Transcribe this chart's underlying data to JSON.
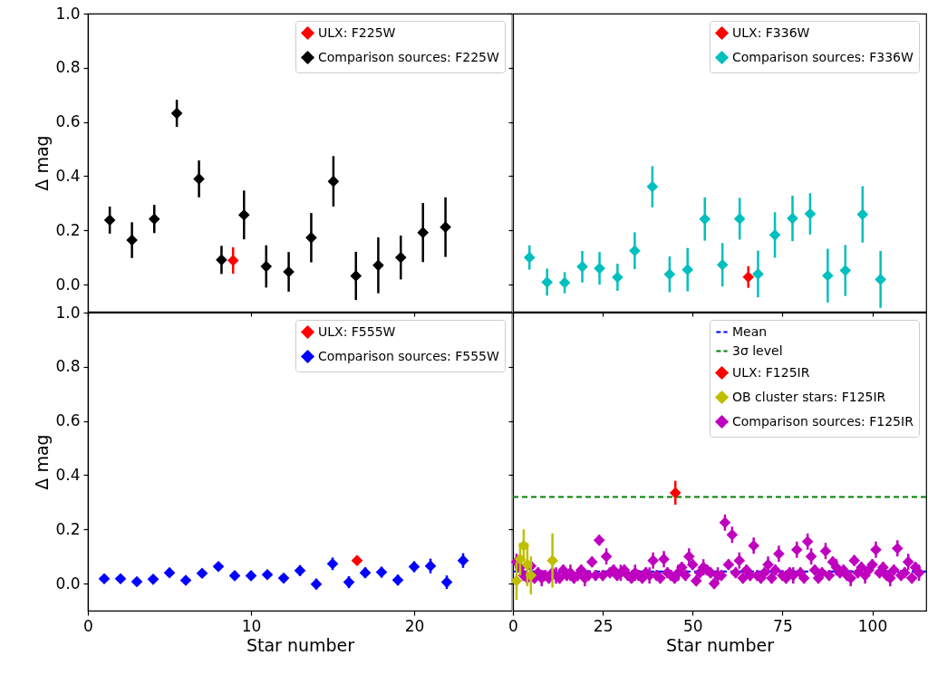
{
  "chart_data": [
    {
      "type": "scatter",
      "ylabel": "Δ mag",
      "marker": "diamond",
      "legend": "top right",
      "tick_labels": "y",
      "xlim": [
        0,
        26
      ],
      "xticks": [
        0,
        10,
        20
      ],
      "ylim": [
        -0.1,
        1.0
      ],
      "yticks": [
        {
          "value": 0,
          "label": "0.0"
        },
        {
          "value": 0.2,
          "label": "0.2"
        },
        {
          "value": 0.4,
          "label": "0.4"
        },
        {
          "value": 0.6,
          "label": "0.6"
        },
        {
          "value": 0.8,
          "label": "0.8"
        },
        {
          "value": 1,
          "label": "1.0"
        }
      ],
      "series": [
        {
          "name": "ULX: F225W",
          "color": "#ff0000",
          "x": [
            8.9
          ],
          "values": [
            0.089
          ],
          "errors": [
            0.049
          ]
        },
        {
          "name": "Comparison sources: F225W",
          "color": "#000000",
          "x": [
            1.34,
            2.7,
            4.07,
            5.45,
            6.81,
            8.19,
            9.57,
            10.93,
            12.31,
            13.69,
            15.05,
            16.43,
            17.8,
            19.18,
            20.54,
            21.92
          ],
          "values": [
            0.238,
            0.164,
            0.242,
            0.632,
            0.39,
            0.091,
            0.257,
            0.067,
            0.047,
            0.173,
            0.381,
            0.032,
            0.071,
            0.1,
            0.192,
            0.212
          ],
          "errors": [
            0.05,
            0.066,
            0.052,
            0.05,
            0.068,
            0.052,
            0.09,
            0.078,
            0.073,
            0.091,
            0.093,
            0.089,
            0.103,
            0.081,
            0.109,
            0.11
          ]
        }
      ]
    },
    {
      "type": "scatter",
      "marker": "diamond",
      "legend": "top right",
      "tick_labels": false,
      "xlim": [
        0,
        115
      ],
      "xticks": [
        0,
        25,
        50,
        75,
        100
      ],
      "ylim": [
        -0.1,
        1.0
      ],
      "yticks": [
        0,
        0.2,
        0.4,
        0.6,
        0.8,
        1
      ],
      "series": [
        {
          "name": "ULX: F336W",
          "color": "#ff0000",
          "x": [
            65.5
          ],
          "values": [
            0.028
          ],
          "errors": [
            0.04
          ]
        },
        {
          "name": "Comparison sources: F336W",
          "color": "#00bfbf",
          "x": [
            4.6,
            9.5,
            14.4,
            19.3,
            24.1,
            29.1,
            33.9,
            38.8,
            43.6,
            48.6,
            53.4,
            58.3,
            63.1,
            68.2,
            72.9,
            77.8,
            82.7,
            87.6,
            92.5,
            97.3,
            102.3
          ],
          "values": [
            0.1,
            0.009,
            0.007,
            0.066,
            0.06,
            0.027,
            0.125,
            0.361,
            0.038,
            0.055,
            0.242,
            0.073,
            0.243,
            0.039,
            0.183,
            0.244,
            0.261,
            0.033,
            0.052,
            0.259,
            0.019
          ],
          "errors": [
            0.045,
            0.05,
            0.039,
            0.058,
            0.06,
            0.05,
            0.068,
            0.076,
            0.066,
            0.08,
            0.08,
            0.08,
            0.077,
            0.086,
            0.084,
            0.084,
            0.076,
            0.099,
            0.094,
            0.104,
            0.105
          ]
        }
      ]
    },
    {
      "type": "scatter",
      "xlabel": "Star number",
      "ylabel": "Δ mag",
      "marker": "diamond",
      "legend": "top right",
      "xlim": [
        0,
        26
      ],
      "xticks": [
        0,
        10,
        20
      ],
      "ylim": [
        -0.1,
        1.0
      ],
      "yticks": [
        {
          "value": 0,
          "label": "0.0"
        },
        {
          "value": 0.2,
          "label": "0.2"
        },
        {
          "value": 0.4,
          "label": "0.4"
        },
        {
          "value": 0.6,
          "label": "0.6"
        },
        {
          "value": 0.8,
          "label": "0.8"
        },
        {
          "value": 1,
          "label": "1.0"
        }
      ],
      "series": [
        {
          "name": "ULX: F555W",
          "color": "#ff0000",
          "x": [
            16.5
          ],
          "values": [
            0.085
          ],
          "errors": [
            null
          ]
        },
        {
          "name": "Comparison sources: F555W",
          "color": "#0000ff",
          "x": [
            1,
            2,
            3,
            4,
            5,
            6,
            7,
            8,
            9,
            10,
            11,
            12,
            13,
            14,
            15,
            16,
            17,
            18,
            19,
            20,
            21,
            22,
            23
          ],
          "values": [
            0.018,
            0.018,
            0.007,
            0.016,
            0.04,
            0.012,
            0.038,
            0.063,
            0.029,
            0.029,
            0.033,
            0.02,
            0.048,
            -0.002,
            0.073,
            0.005,
            0.04,
            0.042,
            0.013,
            0.062,
            0.065,
            0.005,
            0.085
          ],
          "errors": [
            null,
            null,
            null,
            null,
            null,
            null,
            null,
            null,
            null,
            null,
            null,
            null,
            0.02,
            0.02,
            0.023,
            0.022,
            0.02,
            0.02,
            0.02,
            0.02,
            0.027,
            0.025,
            0.027
          ]
        }
      ]
    },
    {
      "type": "scatter",
      "xlabel": "Star number",
      "marker": "diamond",
      "legend": "top right",
      "tick_labels": "x",
      "xlim": [
        0,
        115
      ],
      "xticks": [
        0,
        25,
        50,
        75,
        100
      ],
      "ylim": [
        -0.1,
        1.0
      ],
      "yticks": [
        0,
        0.2,
        0.4,
        0.6,
        0.8,
        1
      ],
      "ref_lines": [
        {
          "axis": "y",
          "value": 0.045,
          "label": "Mean",
          "color": "#0000ff",
          "line_style": "dashed"
        },
        {
          "axis": "y",
          "value": 0.32,
          "label": "3σ level",
          "color": "#008000",
          "line_style": "dashed"
        }
      ],
      "series": [
        {
          "name": "ULX: F125IR",
          "color": "#ff0000",
          "x": [
            45.2
          ],
          "values": [
            0.335
          ],
          "errors": [
            0.044
          ]
        },
        {
          "name": "OB cluster stars: F125IR",
          "color": "#bfbf00",
          "x": [
            1,
            2,
            3,
            4,
            5,
            11
          ],
          "values": [
            0.01,
            0.09,
            0.14,
            0.07,
            0.03,
            0.085
          ],
          "errors": [
            0.07,
            0.06,
            0.06,
            0.08,
            0.07,
            0.1
          ]
        },
        {
          "name": "Comparison sources: F125IR",
          "color": "#bf00bf",
          "x": [
            1,
            2,
            3,
            4,
            5,
            6,
            7,
            8,
            9,
            10,
            11,
            12,
            13,
            14,
            15,
            16,
            17,
            18,
            19,
            20,
            21,
            22,
            23,
            24,
            25,
            26,
            27,
            28,
            29,
            30,
            31,
            32,
            33,
            34,
            35,
            36,
            37,
            38,
            39,
            40,
            41,
            42,
            43,
            44,
            45,
            46,
            47,
            48,
            49,
            50,
            51,
            52,
            53,
            54,
            55,
            56,
            57,
            58,
            59,
            60,
            61,
            62,
            63,
            64,
            65,
            66,
            67,
            68,
            69,
            70,
            71,
            72,
            73,
            74,
            75,
            76,
            77,
            78,
            79,
            80,
            81,
            82,
            83,
            84,
            85,
            86,
            87,
            88,
            89,
            90,
            91,
            92,
            93,
            94,
            95,
            96,
            97,
            98,
            99,
            100,
            101,
            102,
            103,
            104,
            105,
            106,
            107,
            108,
            109,
            110,
            111,
            112,
            113
          ],
          "values": [
            0.08,
            0.06,
            0.03,
            0.02,
            0.065,
            0.02,
            0.04,
            0.02,
            0.03,
            0.02,
            0.04,
            0.03,
            0.02,
            0.05,
            0.03,
            0.04,
            0.02,
            0.03,
            0.05,
            0.02,
            0.03,
            0.08,
            0.03,
            0.16,
            0.03,
            0.1,
            0.04,
            0.05,
            0.03,
            0.04,
            0.05,
            0.03,
            0.02,
            0.04,
            0.03,
            0.02,
            0.04,
            0.03,
            0.085,
            0.03,
            0.02,
            0.09,
            0.04,
            0.03,
            0.02,
            0.04,
            0.06,
            0.03,
            0.1,
            0.07,
            0.01,
            0.04,
            0.06,
            0.05,
            0.04,
            0.0,
            0.03,
            0.03,
            0.225,
            0.07,
            0.18,
            0.04,
            0.085,
            0.02,
            0.05,
            0.03,
            0.14,
            0.03,
            0.02,
            0.04,
            0.07,
            0.02,
            0.05,
            0.11,
            0.03,
            0.02,
            0.04,
            0.03,
            0.125,
            0.04,
            0.02,
            0.155,
            0.1,
            0.05,
            0.02,
            0.04,
            0.12,
            0.03,
            0.08,
            0.06,
            0.04,
            0.05,
            0.03,
            0.02,
            0.085,
            0.04,
            0.06,
            0.03,
            0.05,
            0.07,
            0.125,
            0.04,
            0.06,
            0.03,
            0.02,
            0.05,
            0.13,
            0.03,
            0.04,
            0.08,
            0.02,
            0.06,
            0.04
          ],
          "errors": [
            0.03,
            0.02,
            0.02,
            0.02,
            null,
            0.02,
            0.02,
            0.03,
            0.02,
            0.02,
            0.02,
            0.03,
            0.02,
            0.02,
            0.02,
            0.03,
            0.02,
            0.02,
            0.02,
            0.03,
            0.02,
            0.02,
            0.02,
            0.02,
            0.02,
            0.03,
            0.02,
            0.02,
            0.02,
            0.03,
            0.02,
            0.02,
            0.02,
            0.03,
            0.02,
            0.02,
            0.02,
            0.03,
            0.03,
            0.02,
            0.02,
            0.03,
            0.02,
            0.02,
            0.02,
            0.03,
            0.02,
            0.02,
            0.03,
            0.02,
            0.02,
            0.02,
            0.03,
            0.02,
            0.02,
            0.02,
            0.03,
            0.02,
            0.03,
            0.02,
            0.03,
            0.02,
            0.03,
            0.02,
            0.02,
            0.02,
            0.03,
            0.02,
            0.02,
            0.02,
            0.03,
            0.02,
            0.02,
            0.03,
            0.02,
            0.02,
            0.02,
            0.03,
            0.03,
            0.02,
            0.02,
            0.03,
            0.03,
            0.02,
            0.02,
            0.02,
            0.03,
            0.02,
            0.02,
            0.03,
            0.02,
            0.02,
            0.02,
            0.03,
            0.02,
            0.02,
            0.02,
            0.03,
            0.02,
            0.02,
            0.03,
            0.02,
            0.02,
            0.02,
            0.03,
            0.02,
            0.03,
            0.02,
            0.02,
            0.03,
            0.02,
            0.02,
            0.03
          ]
        }
      ]
    }
  ]
}
